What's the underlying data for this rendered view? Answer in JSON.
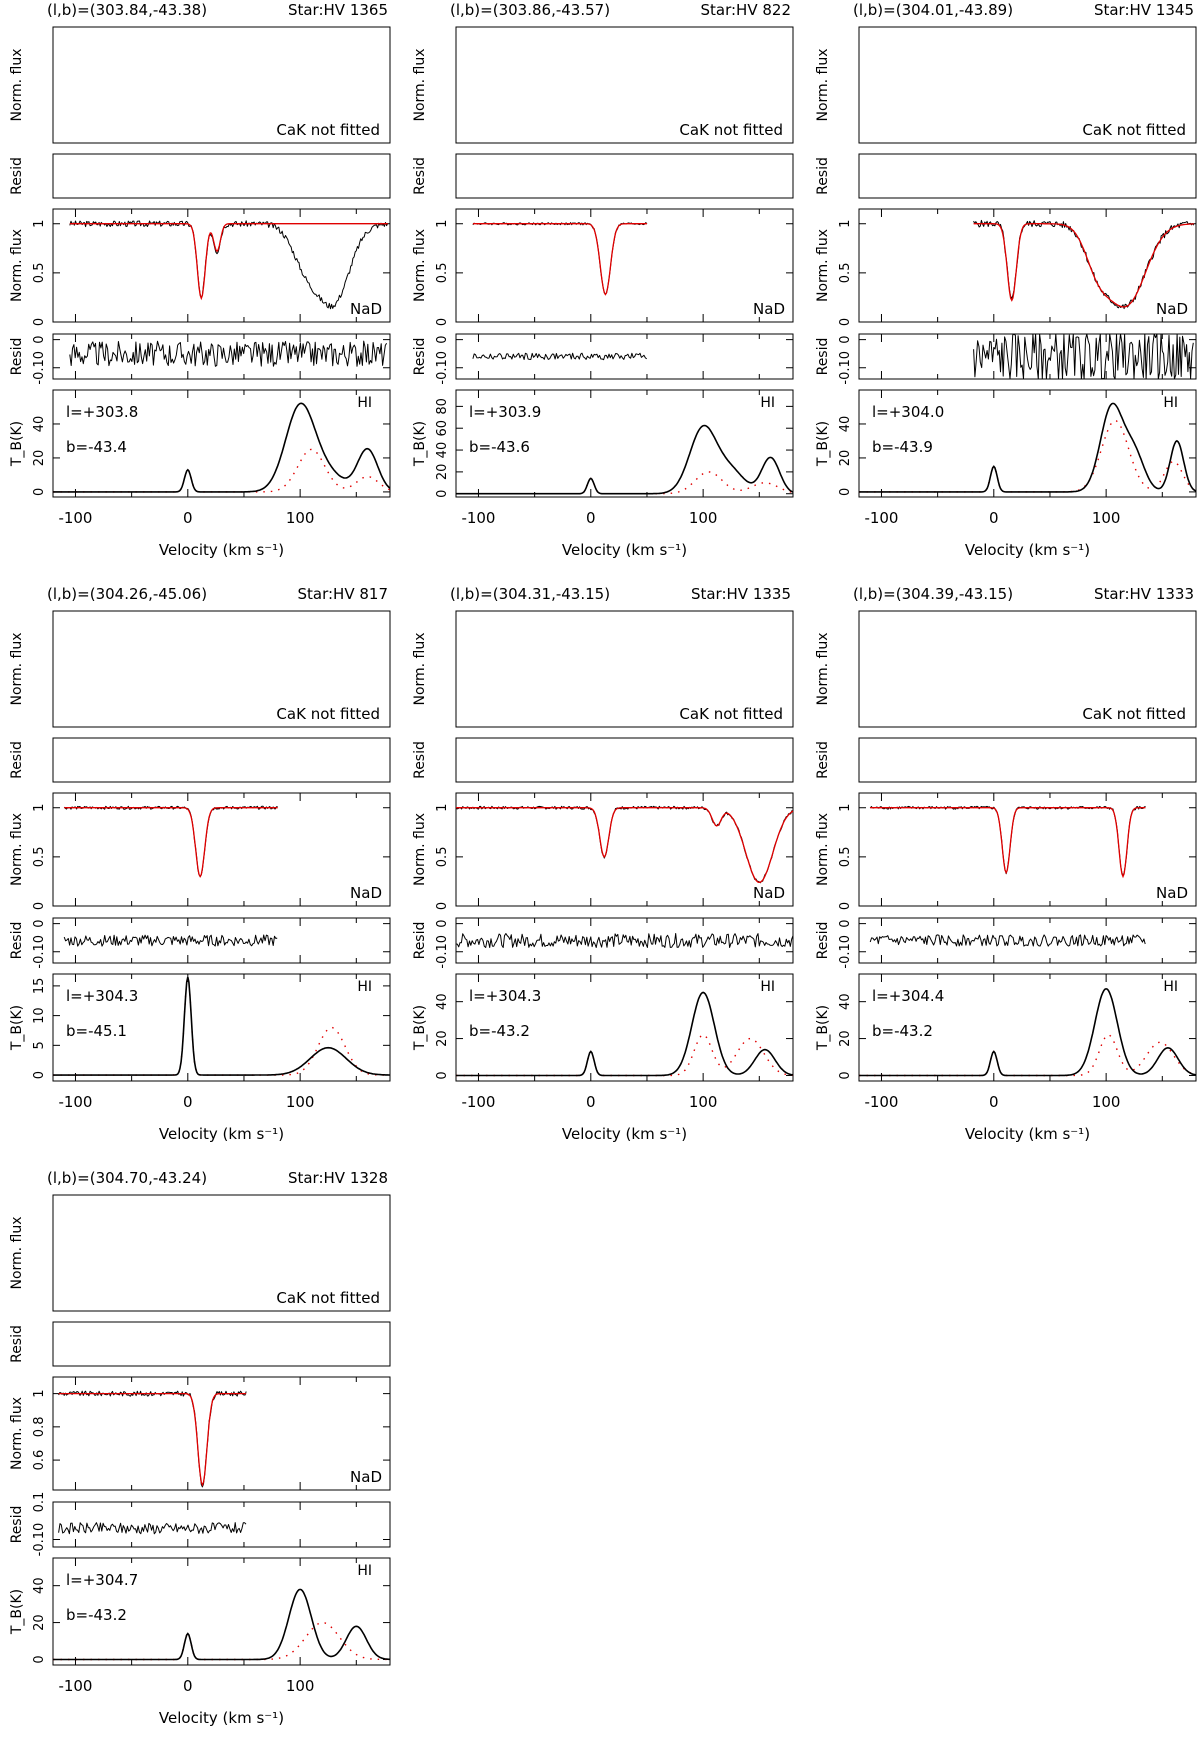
{
  "chart_data": [
    {
      "type": "line",
      "header_coords": "(l,b)=(303.84,-43.38)",
      "header_star": "Star:HV 1365",
      "cak_note": "CaK not fitted",
      "nad_label": "NaD",
      "hi_label": "HI",
      "l_text": "l=+303.8",
      "b_text": "b=-43.4",
      "xlabel": "Velocity (km s⁻¹)",
      "ylabels": {
        "flux": "Norm. flux",
        "resid": "Resid",
        "tb": "T_B(K)"
      },
      "xlim": [
        -120,
        180
      ],
      "xticks": [
        -100,
        0,
        100
      ],
      "nad": {
        "ylim": [
          0,
          1.15
        ],
        "yticks": [
          "0",
          "0.5",
          "1"
        ],
        "vmin": -105,
        "vmax": 178,
        "comps": [
          {
            "v": 12,
            "d": 0.76,
            "w": 3.5
          },
          {
            "v": 26,
            "d": 0.28,
            "w": 3
          }
        ],
        "extra": [
          {
            "v": 130,
            "d": 0.78,
            "w": 14
          },
          {
            "v": 105,
            "d": 0.4,
            "w": 12
          }
        ],
        "noise": 0.03
      },
      "resid": {
        "ylim": [
          -0.14,
          0.02
        ],
        "yticks": [
          "-0.10",
          "0"
        ],
        "noise": 0.045,
        "vmin": -105,
        "vmax": 178,
        "offset": -0.05
      },
      "hi": {
        "ylim": [
          -3,
          60
        ],
        "yticks": [
          "0",
          "20",
          "40"
        ],
        "peaks": [
          {
            "v": 0,
            "h": 13,
            "w": 3
          },
          {
            "v": 100,
            "h": 50,
            "w": 13
          },
          {
            "v": 160,
            "h": 25,
            "w": 9
          },
          {
            "v": 125,
            "h": 10,
            "w": 14
          }
        ],
        "model": [
          {
            "v": 0,
            "h": 13,
            "w": 3
          },
          {
            "v": 110,
            "h": 25,
            "w": 12
          },
          {
            "v": 160,
            "h": 9,
            "w": 10
          }
        ]
      }
    },
    {
      "type": "line",
      "header_coords": "(l,b)=(303.86,-43.57)",
      "header_star": "Star:HV 822",
      "cak_note": "CaK not fitted",
      "nad_label": "NaD",
      "hi_label": "HI",
      "l_text": "l=+303.9",
      "b_text": "b=-43.6",
      "xlabel": "Velocity (km s⁻¹)",
      "ylabels": {
        "flux": "Norm. flux",
        "resid": "Resid",
        "tb": "T_B(K)"
      },
      "xlim": [
        -120,
        180
      ],
      "xticks": [
        -100,
        0,
        100
      ],
      "nad": {
        "ylim": [
          0,
          1.15
        ],
        "yticks": [
          "0",
          "0.5",
          "1"
        ],
        "vmin": -105,
        "vmax": 50,
        "comps": [
          {
            "v": 13,
            "d": 0.72,
            "w": 4.5
          }
        ],
        "extra": [],
        "noise": 0.012
      },
      "resid": {
        "ylim": [
          -0.14,
          0.02
        ],
        "yticks": [
          "-0.10",
          "0"
        ],
        "noise": 0.012,
        "vmin": -105,
        "vmax": 50,
        "offset": -0.06
      },
      "hi": {
        "ylim": [
          -3,
          95
        ],
        "yticks": [
          "0",
          "20",
          "40",
          "60",
          "80"
        ],
        "peaks": [
          {
            "v": 0,
            "h": 14,
            "w": 3
          },
          {
            "v": 100,
            "h": 60,
            "w": 12
          },
          {
            "v": 125,
            "h": 20,
            "w": 12
          },
          {
            "v": 160,
            "h": 33,
            "w": 8
          }
        ],
        "model": [
          {
            "v": 0,
            "h": 14,
            "w": 3
          },
          {
            "v": 105,
            "h": 20,
            "w": 12
          },
          {
            "v": 155,
            "h": 10,
            "w": 12
          }
        ]
      }
    },
    {
      "type": "line",
      "header_coords": "(l,b)=(304.01,-43.89)",
      "header_star": "Star:HV 1345",
      "cak_note": "CaK not fitted",
      "nad_label": "NaD",
      "hi_label": "HI",
      "l_text": "l=+304.0",
      "b_text": "b=-43.9",
      "xlabel": "Velocity (km s⁻¹)",
      "ylabels": {
        "flux": "Norm. flux",
        "resid": "Resid",
        "tb": "T_B(K)"
      },
      "xlim": [
        -120,
        180
      ],
      "xticks": [
        -100,
        0,
        100
      ],
      "nad": {
        "ylim": [
          0,
          1.15
        ],
        "yticks": [
          "0",
          "0.5",
          "1"
        ],
        "vmin": -18,
        "vmax": 178,
        "comps": [
          {
            "v": 16,
            "d": 0.78,
            "w": 4
          },
          {
            "v": 118,
            "d": 0.82,
            "w": 17
          },
          {
            "v": 92,
            "d": 0.35,
            "w": 11
          }
        ],
        "extra": [],
        "noise": 0.035
      },
      "resid": {
        "ylim": [
          -0.14,
          0.02
        ],
        "yticks": [
          "-0.10",
          "0"
        ],
        "noise": 0.09,
        "vmin": -18,
        "vmax": 178,
        "offset": -0.06
      },
      "hi": {
        "ylim": [
          -3,
          60
        ],
        "yticks": [
          "0",
          "20",
          "40"
        ],
        "peaks": [
          {
            "v": 0,
            "h": 15,
            "w": 3
          },
          {
            "v": 105,
            "h": 50,
            "w": 10
          },
          {
            "v": 125,
            "h": 22,
            "w": 9
          },
          {
            "v": 163,
            "h": 30,
            "w": 6
          }
        ],
        "model": [
          {
            "v": 0,
            "h": 15,
            "w": 3
          },
          {
            "v": 108,
            "h": 42,
            "w": 12
          },
          {
            "v": 160,
            "h": 18,
            "w": 8
          }
        ]
      }
    },
    {
      "type": "line",
      "header_coords": "(l,b)=(304.26,-45.06)",
      "header_star": "Star:HV 817",
      "cak_note": "CaK not fitted",
      "nad_label": "NaD",
      "hi_label": "HI",
      "l_text": "l=+304.3",
      "b_text": "b=-45.1",
      "xlabel": "Velocity (km s⁻¹)",
      "ylabels": {
        "flux": "Norm. flux",
        "resid": "Resid",
        "tb": "T_B(K)"
      },
      "xlim": [
        -120,
        180
      ],
      "xticks": [
        -100,
        0,
        100
      ],
      "nad": {
        "ylim": [
          0,
          1.15
        ],
        "yticks": [
          "0",
          "0.5",
          "1"
        ],
        "vmin": -110,
        "vmax": 80,
        "comps": [
          {
            "v": 11,
            "d": 0.7,
            "w": 4
          }
        ],
        "extra": [],
        "noise": 0.015
      },
      "resid": {
        "ylim": [
          -0.14,
          0.02
        ],
        "yticks": [
          "-0.10",
          "0"
        ],
        "noise": 0.02,
        "vmin": -110,
        "vmax": 80,
        "offset": -0.06
      },
      "hi": {
        "ylim": [
          -1,
          17
        ],
        "yticks": [
          "0",
          "5",
          "10",
          "15"
        ],
        "peaks": [
          {
            "v": 0,
            "h": 16.5,
            "w": 3
          },
          {
            "v": 125,
            "h": 4.6,
            "w": 16
          }
        ],
        "model": [
          {
            "v": 0,
            "h": 16.5,
            "w": 3
          },
          {
            "v": 128,
            "h": 8,
            "w": 12
          }
        ]
      }
    },
    {
      "type": "line",
      "header_coords": "(l,b)=(304.31,-43.15)",
      "header_star": "Star:HV 1335",
      "cak_note": "CaK not fitted",
      "nad_label": "NaD",
      "hi_label": "HI",
      "l_text": "l=+304.3",
      "b_text": "b=-43.2",
      "xlabel": "Velocity (km s⁻¹)",
      "ylabels": {
        "flux": "Norm. flux",
        "resid": "Resid",
        "tb": "T_B(K)"
      },
      "xlim": [
        -120,
        180
      ],
      "xticks": [
        -100,
        0,
        100
      ],
      "nad": {
        "ylim": [
          0,
          1.15
        ],
        "yticks": [
          "0",
          "0.5",
          "1"
        ],
        "vmin": -120,
        "vmax": 180,
        "comps": [
          {
            "v": 12,
            "d": 0.5,
            "w": 4
          },
          {
            "v": 112,
            "d": 0.18,
            "w": 4
          },
          {
            "v": 150,
            "d": 0.76,
            "w": 12
          }
        ],
        "extra": [],
        "noise": 0.015
      },
      "resid": {
        "ylim": [
          -0.14,
          0.02
        ],
        "yticks": [
          "-0.10",
          "0"
        ],
        "noise": 0.025,
        "vmin": -120,
        "vmax": 180,
        "offset": -0.06
      },
      "hi": {
        "ylim": [
          -3,
          55
        ],
        "yticks": [
          "0",
          "20",
          "40"
        ],
        "peaks": [
          {
            "v": 0,
            "h": 13,
            "w": 3
          },
          {
            "v": 100,
            "h": 45,
            "w": 10
          },
          {
            "v": 155,
            "h": 14,
            "w": 9
          }
        ],
        "model": [
          {
            "v": 0,
            "h": 13,
            "w": 3
          },
          {
            "v": 100,
            "h": 22,
            "w": 8
          },
          {
            "v": 142,
            "h": 20,
            "w": 12
          }
        ]
      }
    },
    {
      "type": "line",
      "header_coords": "(l,b)=(304.39,-43.15)",
      "header_star": "Star:HV 1333",
      "cak_note": "CaK not fitted",
      "nad_label": "NaD",
      "hi_label": "HI",
      "l_text": "l=+304.4",
      "b_text": "b=-43.2",
      "xlabel": "Velocity (km s⁻¹)",
      "ylabels": {
        "flux": "Norm. flux",
        "resid": "Resid",
        "tb": "T_B(K)"
      },
      "xlim": [
        -120,
        180
      ],
      "xticks": [
        -100,
        0,
        100
      ],
      "nad": {
        "ylim": [
          0,
          1.15
        ],
        "yticks": [
          "0",
          "0.5",
          "1"
        ],
        "vmin": -110,
        "vmax": 135,
        "comps": [
          {
            "v": 11,
            "d": 0.66,
            "w": 3.5
          },
          {
            "v": 115,
            "d": 0.7,
            "w": 3.5
          }
        ],
        "extra": [],
        "noise": 0.015
      },
      "resid": {
        "ylim": [
          -0.14,
          0.02
        ],
        "yticks": [
          "-0.10",
          "0"
        ],
        "noise": 0.02,
        "vmin": -110,
        "vmax": 135,
        "offset": -0.06
      },
      "hi": {
        "ylim": [
          -3,
          55
        ],
        "yticks": [
          "0",
          "20",
          "40"
        ],
        "peaks": [
          {
            "v": 0,
            "h": 13,
            "w": 3
          },
          {
            "v": 100,
            "h": 47,
            "w": 10
          },
          {
            "v": 155,
            "h": 15,
            "w": 9
          }
        ],
        "model": [
          {
            "v": 0,
            "h": 13,
            "w": 3
          },
          {
            "v": 102,
            "h": 22,
            "w": 8
          },
          {
            "v": 148,
            "h": 18,
            "w": 12
          }
        ]
      }
    },
    {
      "type": "line",
      "header_coords": "(l,b)=(304.70,-43.24)",
      "header_star": "Star:HV 1328",
      "cak_note": "CaK not fitted",
      "nad_label": "NaD",
      "hi_label": "HI",
      "l_text": "l=+304.7",
      "b_text": "b=-43.2",
      "xlabel": "Velocity (km s⁻¹)",
      "ylabels": {
        "flux": "Norm. flux",
        "resid": "Resid",
        "tb": "T_B(K)"
      },
      "xlim": [
        -120,
        180
      ],
      "xticks": [
        -100,
        0,
        100
      ],
      "nad": {
        "ylim": [
          0.42,
          1.1
        ],
        "yticks": [
          "0.6",
          "0.8",
          "1"
        ],
        "vmin": -115,
        "vmax": 52,
        "comps": [
          {
            "v": 13,
            "d": 0.55,
            "w": 4
          }
        ],
        "extra": [],
        "noise": 0.015
      },
      "resid": {
        "ylim": [
          -0.14,
          0.1
        ],
        "yticks": [
          "-0.10",
          "0.1"
        ],
        "noise": 0.03,
        "vmin": -115,
        "vmax": 52,
        "offset": -0.04
      },
      "hi": {
        "ylim": [
          -3,
          55
        ],
        "yticks": [
          "0",
          "20",
          "40"
        ],
        "peaks": [
          {
            "v": 0,
            "h": 14,
            "w": 3
          },
          {
            "v": 100,
            "h": 38,
            "w": 10
          },
          {
            "v": 150,
            "h": 18,
            "w": 9
          }
        ],
        "model": [
          {
            "v": 0,
            "h": 14,
            "w": 3
          },
          {
            "v": 120,
            "h": 20,
            "w": 15
          }
        ]
      }
    }
  ]
}
